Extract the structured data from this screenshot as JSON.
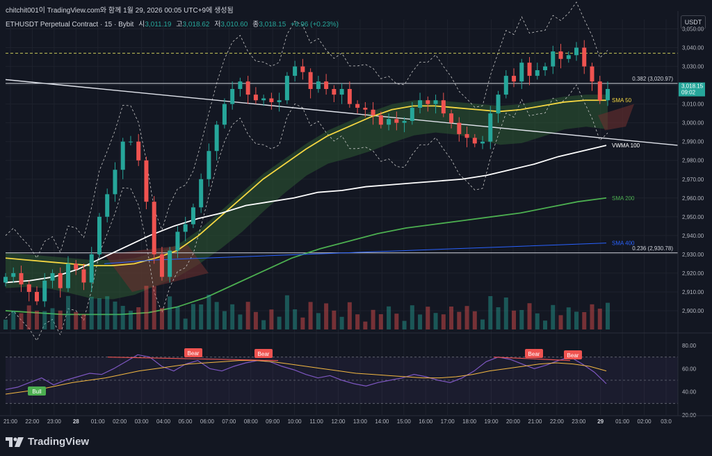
{
  "header": {
    "title": "chitchit001이 TradingView.com와 함께 1월 29, 2026 00:05 UTC+9에 생성됨"
  },
  "info": {
    "symbol": "ETHUSDT Perpetual Contract · 15 · Bybit",
    "open_label": "시",
    "open": "3,011.19",
    "high_label": "고",
    "high": "3,018.62",
    "low_label": "저",
    "low": "3,010.60",
    "close_label": "종",
    "close": "3,018.15",
    "change": "+6.96 (+0.23%)"
  },
  "currency": "USDT",
  "brand": "TradingView",
  "colors": {
    "bg": "#131722",
    "up": "#26a69a",
    "down": "#ef5350",
    "sma50": "#f5d742",
    "sma200": "#4caf50",
    "sma400": "#2962ff",
    "vwma": "#ffffff",
    "rsi": "#7e57c2",
    "rsi_ma": "#f5b942"
  },
  "chart_data": [
    {
      "type": "candlestick",
      "ylim": [
        2890,
        3055
      ],
      "y_ticks": [
        "3,050.00",
        "3,040.00",
        "3,030.00",
        "3,020.00",
        "3,010.00",
        "3,000.00",
        "2,990.00",
        "2,980.00",
        "2,970.00",
        "2,960.00",
        "2,950.00",
        "2,940.00",
        "2,930.00",
        "2,920.00",
        "2,910.00",
        "2,900.00"
      ],
      "x_ticks": [
        "21:00",
        "22:00",
        "23:00",
        "28",
        "01:00",
        "02:00",
        "03:00",
        "04:00",
        "05:00",
        "06:00",
        "07:00",
        "08:00",
        "09:00",
        "10:00",
        "11:00",
        "12:00",
        "13:00",
        "14:00",
        "15:00",
        "16:00",
        "17:00",
        "18:00",
        "19:00",
        "20:00",
        "21:00",
        "22:00",
        "23:00",
        "29",
        "01:00",
        "02:00",
        "03:0"
      ],
      "candles_close": [
        2918,
        2920,
        2914,
        2910,
        2905,
        2916,
        2920,
        2912,
        2925,
        2922,
        2915,
        2930,
        2950,
        2962,
        2975,
        2990,
        2990,
        2980,
        2958,
        2930,
        2918,
        2932,
        2942,
        2946,
        2955,
        2970,
        2985,
        2999,
        3010,
        3018,
        3022,
        3015,
        3012,
        3013,
        3011,
        3012,
        3025,
        3030,
        3027,
        3018,
        3022,
        3018,
        3015,
        3018,
        3010,
        3008,
        3007,
        3004,
        2999,
        3002,
        3000,
        3001,
        3008,
        3012,
        3010,
        3012,
        3005,
        3000,
        2994,
        2992,
        2989,
        2990,
        3005,
        3015,
        3025,
        3022,
        3032,
        3025,
        3028,
        3030,
        3038,
        3034,
        3036,
        3040,
        3030,
        3022,
        3012,
        3018
      ],
      "current_price_label": "3,018.15",
      "countdown": "09:02",
      "fib_levels": [
        {
          "label": "0.382 (3,020.97)",
          "value": 3020.97
        },
        {
          "label": "0.236 (2,930.78)",
          "value": 2930.78
        }
      ],
      "dashed_level": 3037,
      "series": [
        {
          "name": "SMA 50",
          "color": "#f5d742",
          "values": [
            2928,
            2927,
            2926,
            2925,
            2924,
            2924,
            2925,
            2928,
            2932,
            2940,
            2950,
            2960,
            2970,
            2978,
            2986,
            2993,
            2998,
            3003,
            3007,
            3009,
            3009,
            3008,
            3007,
            3006,
            3007,
            3009,
            3011,
            3012,
            3012
          ]
        },
        {
          "name": "VWMA 100",
          "color": "#ffffff",
          "values": [
            2915,
            2916,
            2918,
            2922,
            2928,
            2934,
            2940,
            2945,
            2949,
            2952,
            2956,
            2958,
            2960,
            2963,
            2964,
            2966,
            2967,
            2968,
            2969,
            2970,
            2972,
            2975,
            2978,
            2982,
            2985,
            2988
          ]
        },
        {
          "name": "SMA 200",
          "color": "#4caf50",
          "values": [
            2900,
            2899,
            2898,
            2898,
            2898,
            2899,
            2902,
            2907,
            2914,
            2921,
            2928,
            2933,
            2937,
            2941,
            2944,
            2946,
            2948,
            2950,
            2952,
            2955,
            2958,
            2960
          ]
        },
        {
          "name": "SMA 400",
          "color": "#2962ff",
          "values": [
            2925,
            2927,
            2928,
            2929,
            2930,
            2931,
            2932,
            2933,
            2934,
            2935,
            2936
          ]
        }
      ]
    },
    {
      "type": "line",
      "ylim": [
        20,
        80
      ],
      "y_ticks": [
        "80.00",
        "60.00",
        "40.00",
        "20.00"
      ],
      "rsi": [
        42,
        44,
        48,
        52,
        46,
        50,
        53,
        56,
        55,
        60,
        66,
        72,
        70,
        62,
        58,
        64,
        67,
        60,
        58,
        62,
        65,
        67,
        66,
        62,
        59,
        55,
        52,
        54,
        50,
        47,
        45,
        48,
        50,
        52,
        55,
        53,
        50,
        48,
        52,
        58,
        66,
        70,
        68,
        64,
        60,
        63,
        67,
        70,
        64,
        57,
        47
      ],
      "rsi_ma": [
        38,
        40,
        42,
        45,
        48,
        50,
        52,
        55,
        58,
        60,
        62,
        64,
        65,
        66,
        67,
        67,
        66,
        64,
        62,
        60,
        58,
        56,
        55,
        54,
        53,
        52,
        52,
        53,
        55,
        58,
        60,
        62,
        64,
        65,
        64,
        62,
        58
      ],
      "signals": [
        {
          "label": "Bull",
          "kind": "bull"
        },
        {
          "label": "Bear",
          "kind": "bear"
        },
        {
          "label": "Bear",
          "kind": "bear"
        },
        {
          "label": "Bear",
          "kind": "bear"
        },
        {
          "label": "Bear",
          "kind": "bear"
        }
      ]
    }
  ]
}
